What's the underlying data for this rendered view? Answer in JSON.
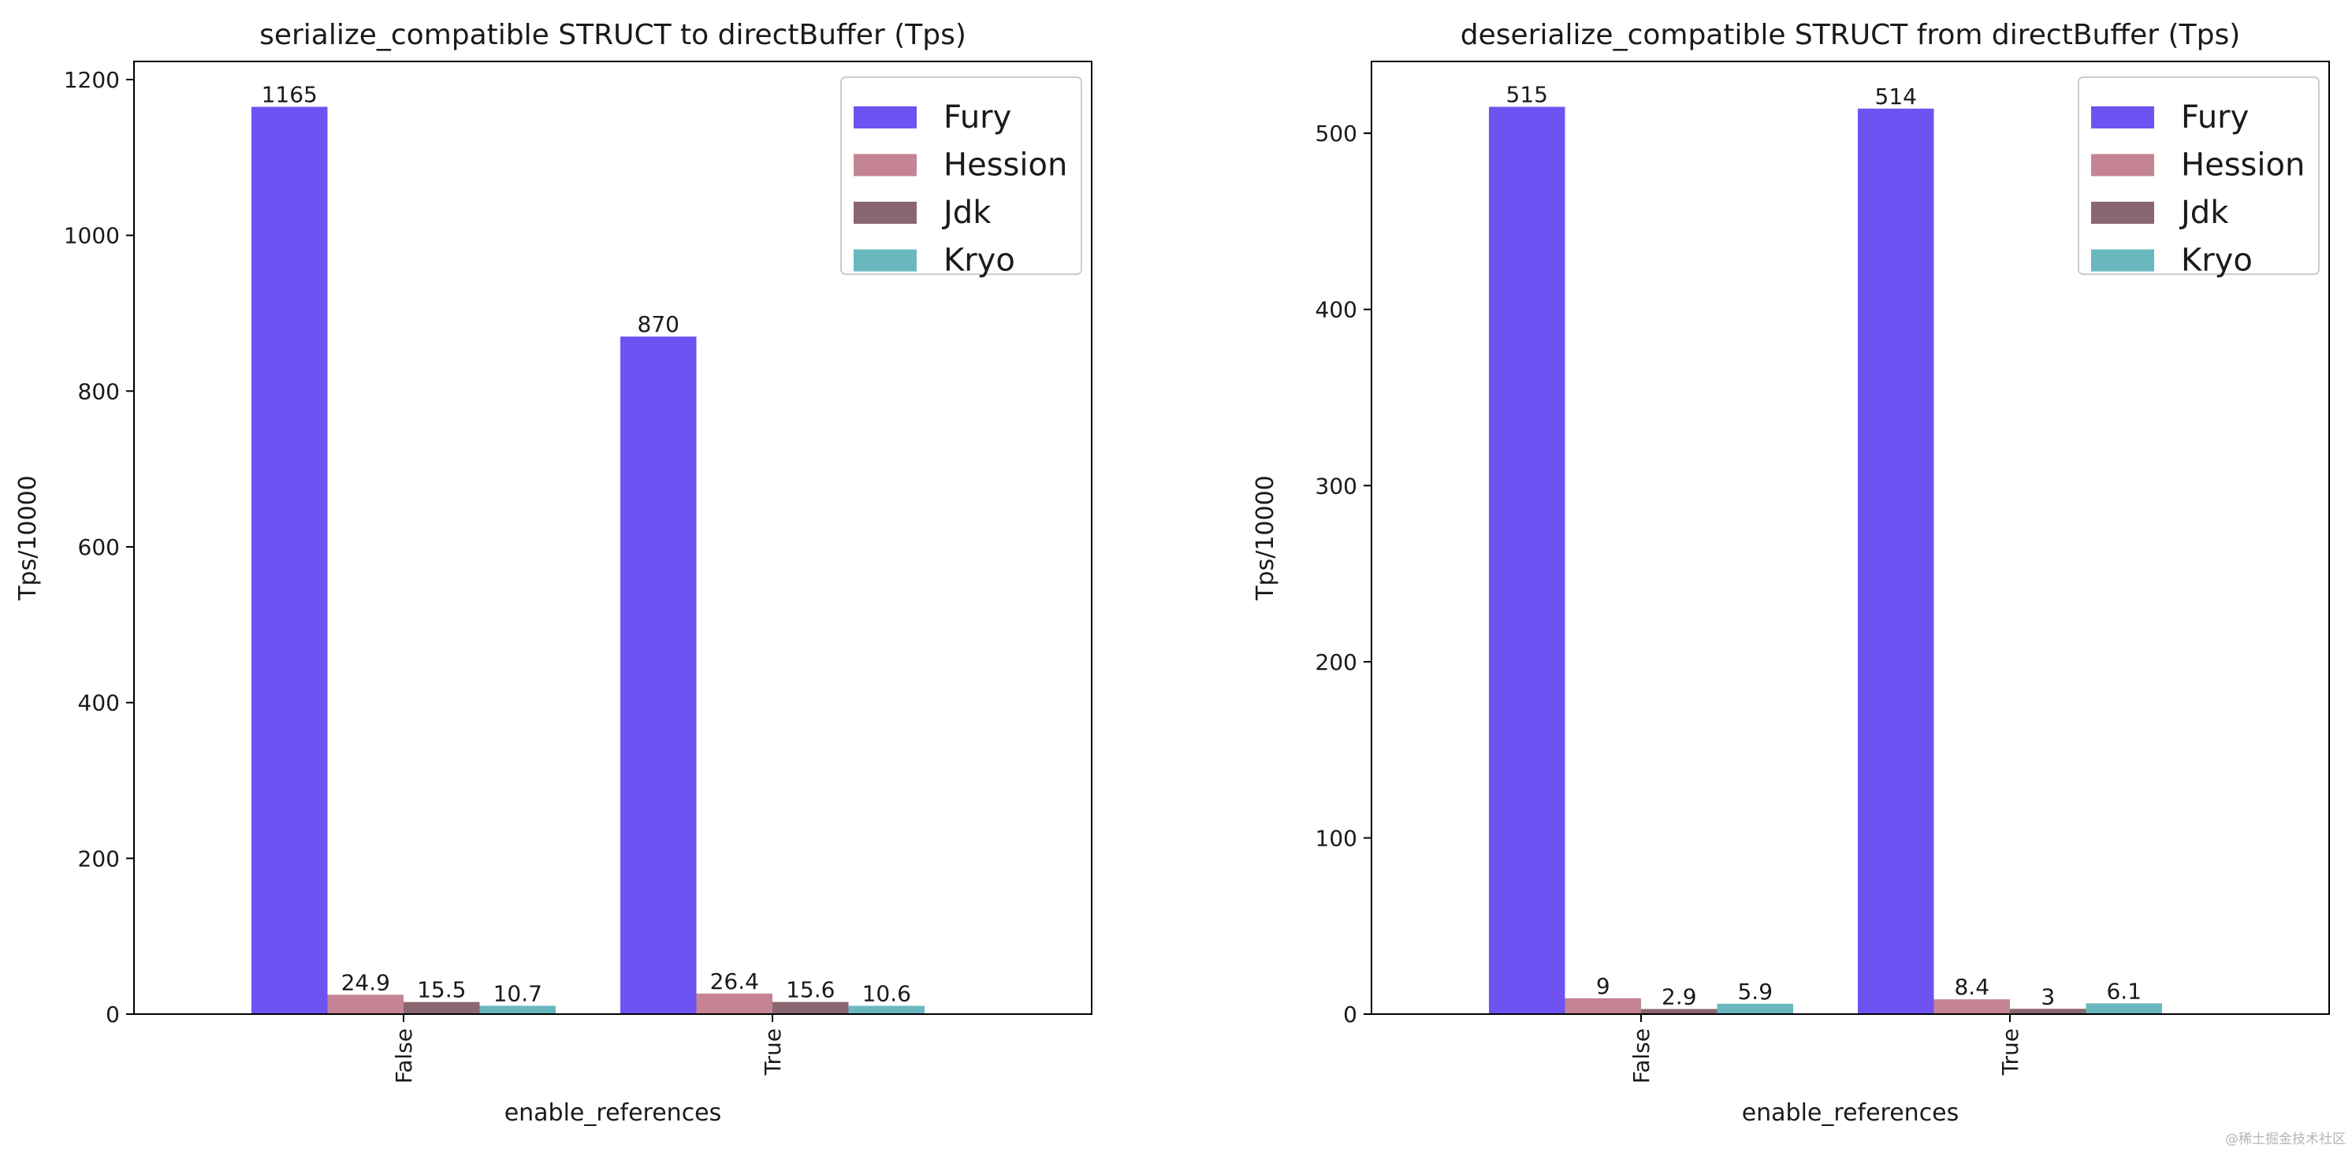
{
  "chart_data": [
    {
      "type": "bar",
      "title": "serialize_compatible STRUCT to directBuffer (Tps)",
      "xlabel": "enable_references",
      "ylabel": "Tps/10000",
      "categories": [
        "False",
        "True"
      ],
      "ylim": [
        0,
        1223.25
      ],
      "yticks": [
        0,
        200,
        400,
        600,
        800,
        1000,
        1200
      ],
      "legend_position": "top-right",
      "grid": false,
      "series": [
        {
          "name": "Fury",
          "color": "#6f52f2",
          "values": [
            1165,
            870
          ],
          "labels": [
            "1165",
            "870"
          ]
        },
        {
          "name": "Hession",
          "color": "#c48494",
          "values": [
            24.9,
            26.4
          ],
          "labels": [
            "24.9",
            "26.4"
          ]
        },
        {
          "name": "Jdk",
          "color": "#8a6670",
          "values": [
            15.5,
            15.6
          ],
          "labels": [
            "15.5",
            "15.6"
          ]
        },
        {
          "name": "Kryo",
          "color": "#6ab8bf",
          "values": [
            10.7,
            10.6
          ],
          "labels": [
            "10.7",
            "10.6"
          ]
        }
      ]
    },
    {
      "type": "bar",
      "title": "deserialize_compatible STRUCT from directBuffer (Tps)",
      "xlabel": "enable_references",
      "ylabel": "Tps/10000",
      "categories": [
        "False",
        "True"
      ],
      "ylim": [
        0,
        540.75
      ],
      "yticks": [
        0,
        100,
        200,
        300,
        400,
        500
      ],
      "legend_position": "top-right",
      "grid": false,
      "series": [
        {
          "name": "Fury",
          "color": "#6f52f2",
          "values": [
            515,
            514
          ],
          "labels": [
            "515",
            "514"
          ]
        },
        {
          "name": "Hession",
          "color": "#c48494",
          "values": [
            9,
            8.4
          ],
          "labels": [
            "9",
            "8.4"
          ]
        },
        {
          "name": "Jdk",
          "color": "#8a6670",
          "values": [
            2.9,
            3
          ],
          "labels": [
            "2.9",
            "3"
          ]
        },
        {
          "name": "Kryo",
          "color": "#6ab8bf",
          "values": [
            5.9,
            6.1
          ],
          "labels": [
            "5.9",
            "6.1"
          ]
        }
      ]
    }
  ],
  "watermark": "@稀土掘金技术社区"
}
